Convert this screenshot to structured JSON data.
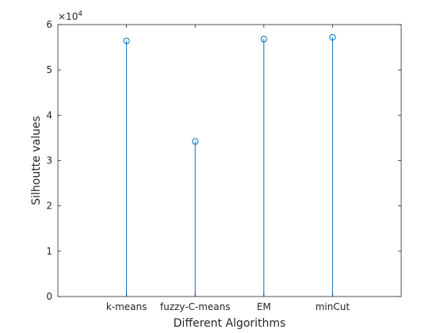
{
  "chart_data": {
    "type": "stem",
    "categories": [
      "k-means",
      "fuzzy-C-means",
      "EM",
      "minCut"
    ],
    "x": [
      1,
      2,
      3,
      4
    ],
    "values": [
      56400,
      34200,
      56800,
      57200
    ],
    "xlim": [
      0,
      5
    ],
    "ylim": [
      0,
      60000
    ],
    "yticks": [
      0,
      10000,
      20000,
      30000,
      40000,
      50000,
      60000
    ],
    "ytick_labels": [
      "0",
      "1",
      "2",
      "3",
      "4",
      "5",
      "6"
    ],
    "y_exponent_base": "×10",
    "y_exponent": "4",
    "xlabel": "Different Algorithms",
    "ylabel": "Silhoutte values",
    "grid": false,
    "marker": "circle-open",
    "series_color": "#0072bd",
    "axis_color": "#262626"
  }
}
